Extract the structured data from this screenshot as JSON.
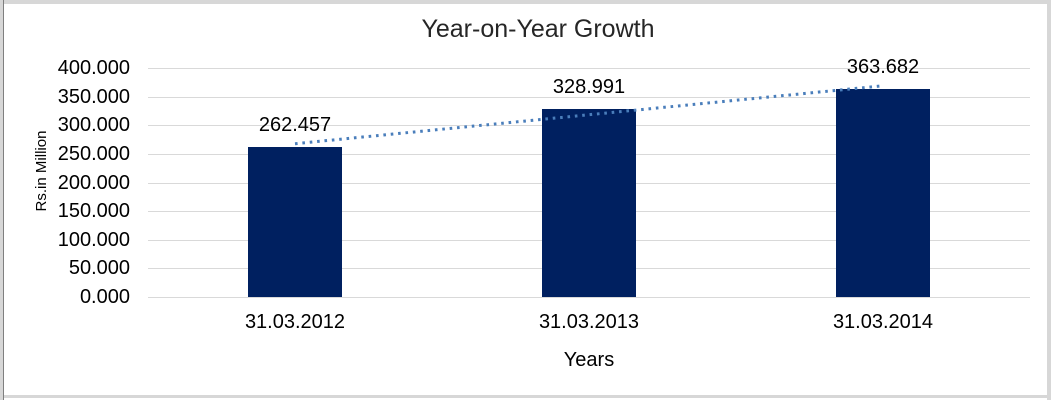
{
  "chart_data": {
    "type": "bar",
    "title": "Year-on-Year Growth",
    "xlabel": "Years",
    "ylabel": "Rs.in Million",
    "categories": [
      "31.03.2012",
      "31.03.2013",
      "31.03.2014"
    ],
    "values": [
      262.457,
      328.991,
      363.682
    ],
    "data_labels": [
      "262.457",
      "328.991",
      "363.682"
    ],
    "ylim": [
      0,
      400
    ],
    "ytick_labels": [
      "0.000",
      "50.000",
      "100.000",
      "150.000",
      "200.000",
      "250.000",
      "300.000",
      "350.000",
      "400.000"
    ],
    "grid": true,
    "legend": "none",
    "trendline": {
      "type": "linear",
      "style": "dotted",
      "color": "#4a7ebb"
    },
    "colors": {
      "bar": "#002060",
      "gridline": "#d9d9d9",
      "text": "#000000",
      "title_text": "#262626",
      "background": "#ffffff",
      "frame": "#d7d7d7"
    }
  }
}
